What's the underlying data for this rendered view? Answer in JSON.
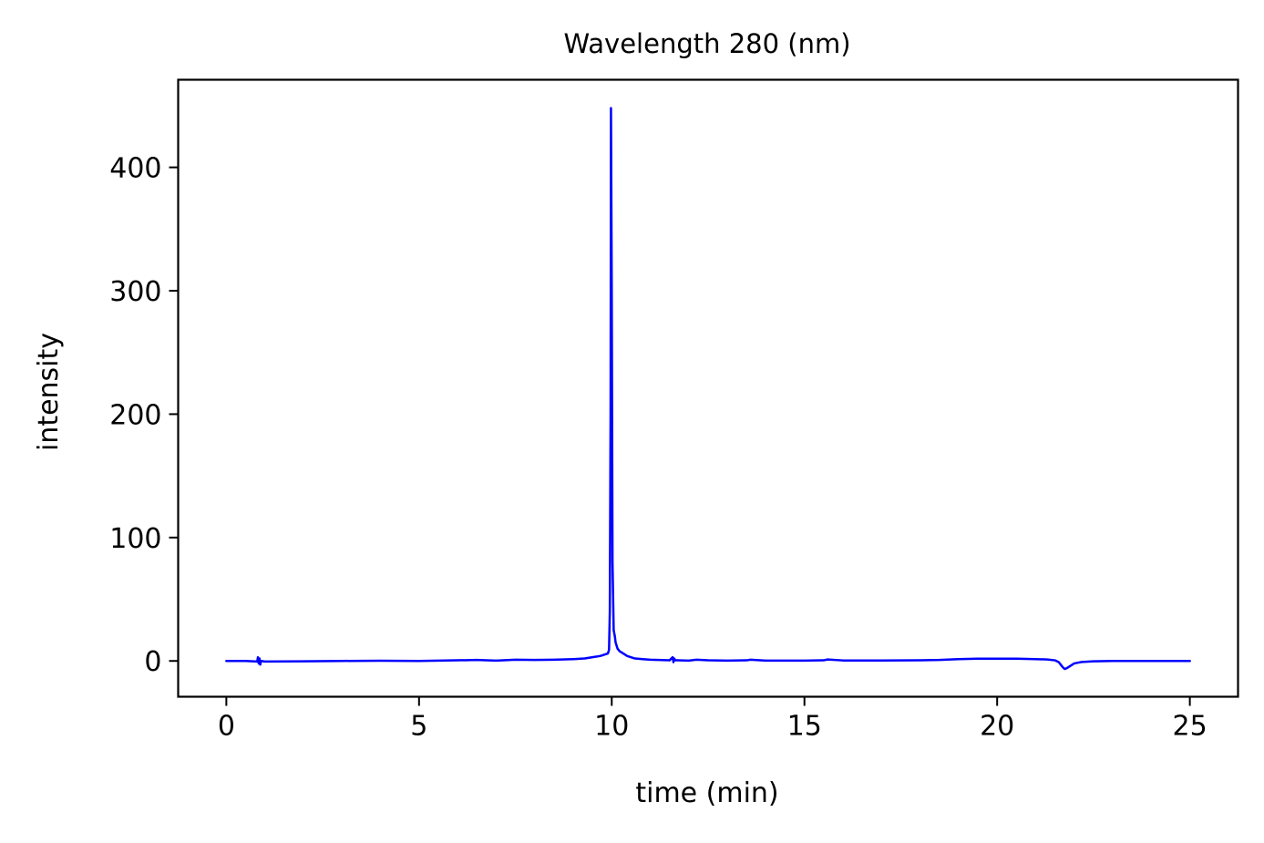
{
  "chart_data": {
    "type": "line",
    "title": "Wavelength 280 (nm)",
    "xlabel": "time (min)",
    "ylabel": "intensity",
    "xlim": [
      -1.25,
      26.25
    ],
    "ylim": [
      -29,
      471
    ],
    "xticks": [
      0,
      5,
      10,
      15,
      20,
      25
    ],
    "xtick_labels": [
      "0",
      "5",
      "10",
      "15",
      "20",
      "25"
    ],
    "yticks": [
      0,
      100,
      200,
      300,
      400
    ],
    "ytick_labels": [
      "0",
      "100",
      "200",
      "300",
      "400"
    ],
    "grid": false,
    "series": [
      {
        "name": "280 nm",
        "color": "#0000ff",
        "x": [
          0,
          0.5,
          0.8,
          0.82,
          0.84,
          0.86,
          0.88,
          0.9,
          1.0,
          2,
          3,
          4,
          5,
          6,
          6.5,
          7,
          7.5,
          8,
          8.5,
          9,
          9.3,
          9.5,
          9.7,
          9.8,
          9.9,
          9.93,
          9.95,
          9.97,
          9.98,
          10.0,
          10.02,
          10.05,
          10.08,
          10.1,
          10.15,
          10.2,
          10.3,
          10.4,
          10.5,
          10.6,
          10.8,
          11,
          11.2,
          11.5,
          11.58,
          11.6,
          11.62,
          11.65,
          11.7,
          12,
          12.2,
          12.5,
          13,
          13.5,
          13.6,
          14,
          15,
          15.5,
          15.6,
          16,
          17,
          18,
          18.5,
          19,
          19.5,
          20,
          20.5,
          21,
          21.3,
          21.5,
          21.6,
          21.65,
          21.7,
          21.75,
          21.8,
          21.9,
          22.0,
          22.2,
          22.5,
          23,
          24,
          25
        ],
        "y": [
          0,
          0,
          -0.5,
          3,
          -2,
          2,
          -3,
          0,
          -0.5,
          -0.3,
          0,
          0.2,
          0,
          0.5,
          0.8,
          0.3,
          1,
          0.8,
          1,
          1.5,
          2,
          3,
          4,
          5,
          6,
          9,
          40,
          200,
          448,
          300,
          80,
          25,
          20,
          15,
          10,
          8,
          6,
          4,
          3,
          2,
          1.5,
          1,
          0.8,
          0.5,
          3,
          -1,
          2,
          0.5,
          0.5,
          0.3,
          1,
          0.5,
          0.3,
          0.5,
          1,
          0.3,
          0.3,
          0.5,
          1.2,
          0.4,
          0.4,
          0.5,
          0.8,
          1.5,
          1.8,
          1.8,
          1.8,
          1.5,
          1.2,
          0.5,
          -1,
          -3,
          -5,
          -6.5,
          -6,
          -4,
          -2,
          -0.8,
          -0.3,
          0,
          0,
          0
        ]
      }
    ]
  }
}
